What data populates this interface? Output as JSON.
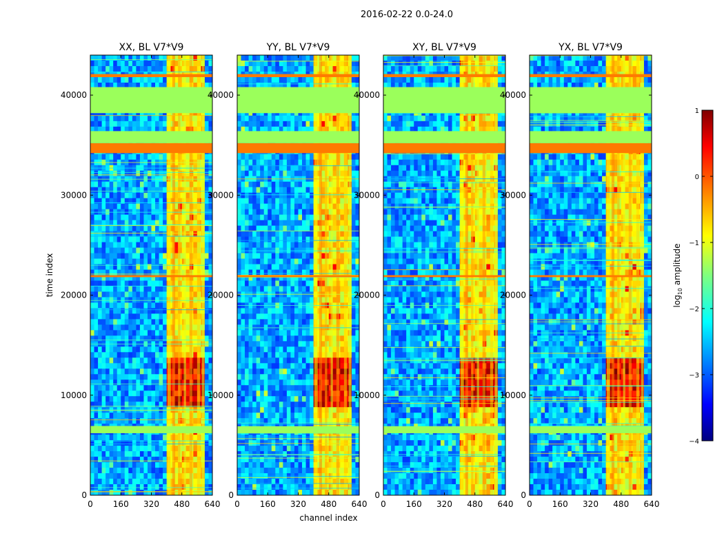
{
  "figure": {
    "suptitle": "2016-02-22 0.0-24.0"
  },
  "chart_data": [
    {
      "type": "heatmap",
      "title": "XX, BL V7*V9",
      "xlabel": "",
      "ylabel": "time index",
      "xlim": [
        0,
        640
      ],
      "ylim": [
        0,
        44000
      ],
      "xticks": [
        0,
        160,
        320,
        480,
        640
      ],
      "yticks": [
        0,
        10000,
        20000,
        30000,
        40000
      ],
      "colormap": "jet",
      "value_units": "log10 amplitude"
    },
    {
      "type": "heatmap",
      "title": "YY, BL V7*V9",
      "xlabel": "channel index",
      "ylabel": "",
      "xlim": [
        0,
        640
      ],
      "ylim": [
        0,
        44000
      ],
      "xticks": [
        0,
        160,
        320,
        480,
        640
      ],
      "yticks": [
        0,
        10000,
        20000,
        30000,
        40000
      ],
      "colormap": "jet",
      "value_units": "log10 amplitude"
    },
    {
      "type": "heatmap",
      "title": "XY, BL V7*V9",
      "xlabel": "",
      "ylabel": "",
      "xlim": [
        0,
        640
      ],
      "ylim": [
        0,
        44000
      ],
      "xticks": [
        0,
        160,
        320,
        480,
        640
      ],
      "yticks": [
        0,
        10000,
        20000,
        30000,
        40000
      ],
      "colormap": "jet",
      "value_units": "log10 amplitude"
    },
    {
      "type": "heatmap",
      "title": "YX, BL V7*V9",
      "xlabel": "",
      "ylabel": "",
      "xlim": [
        0,
        640
      ],
      "ylim": [
        0,
        44000
      ],
      "xticks": [
        0,
        160,
        320,
        480,
        640
      ],
      "yticks": [
        0,
        10000,
        20000,
        30000,
        40000
      ],
      "colormap": "jet",
      "value_units": "log10 amplitude"
    }
  ],
  "colorbar": {
    "label": "log10 amplitude",
    "label_prefix": "log",
    "label_sub": "10",
    "label_suffix": " amplitude",
    "range": [
      -4,
      1
    ],
    "ticks": [
      "1",
      "0",
      "−1",
      "−2",
      "−3",
      "−4"
    ],
    "tick_values": [
      1,
      0,
      -1,
      -2,
      -3,
      -4
    ]
  },
  "flagged_bands": [
    {
      "from": 34200,
      "to": 35200,
      "color": "#ff7a00"
    },
    {
      "from": 35200,
      "to": 36400,
      "color": "#9bff5b"
    },
    {
      "from": 38200,
      "to": 40800,
      "color": "#9bff5b"
    },
    {
      "from": 6200,
      "to": 6900,
      "color": "#9bff5b"
    },
    {
      "from": 41800,
      "to": 42100,
      "color": "#ff7a00"
    },
    {
      "from": 21800,
      "to": 22000,
      "color": "#ff7a00"
    }
  ]
}
